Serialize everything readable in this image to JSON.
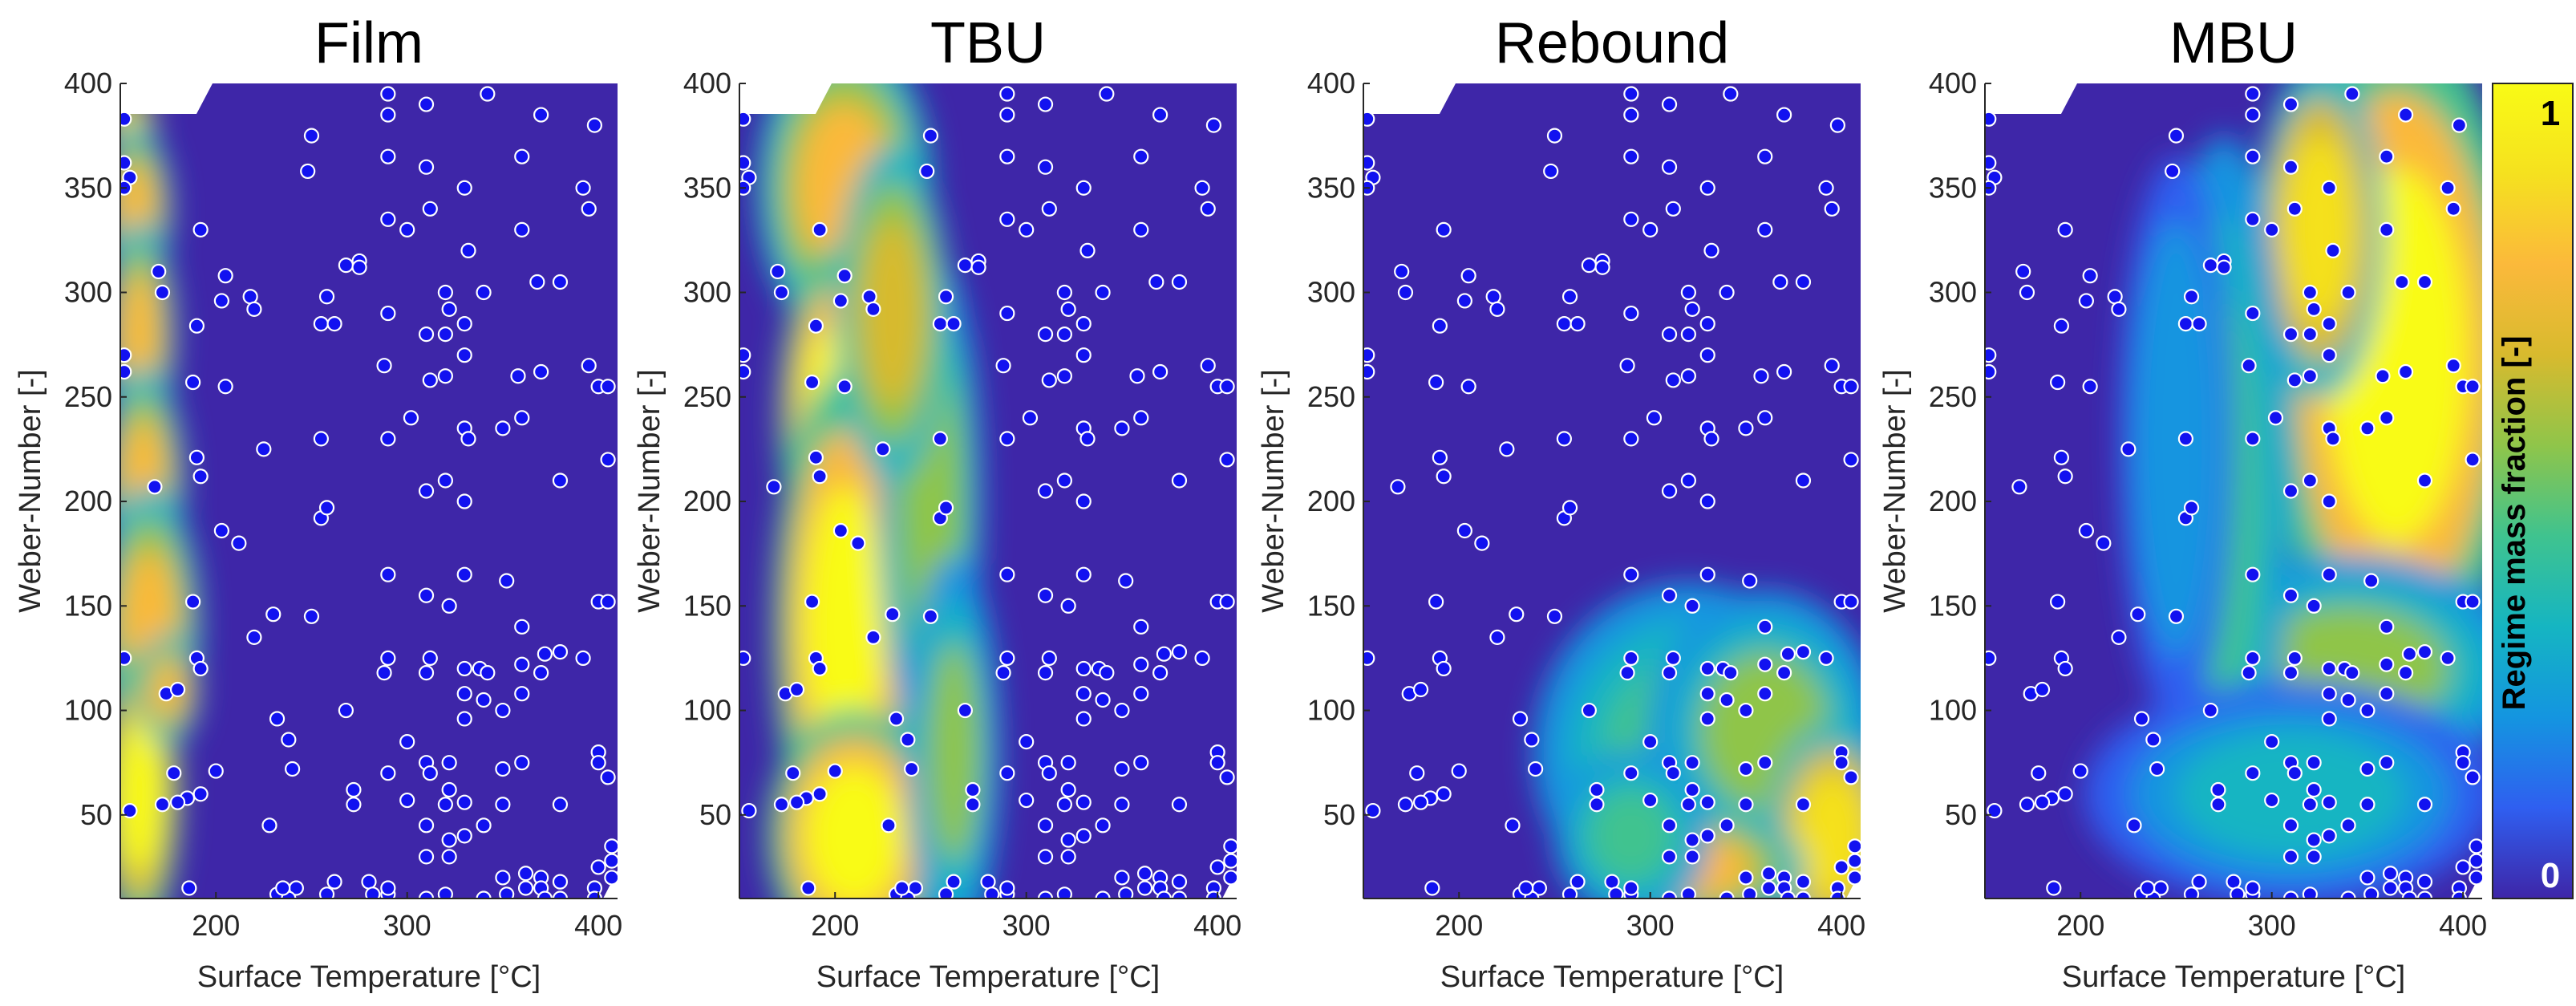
{
  "colorbar": {
    "label": "Regime mass fraction [-]",
    "min_label": "0",
    "max_label": "1",
    "colors": [
      "#3e26a8",
      "#2f5ff0",
      "#1495e0",
      "#15b5c2",
      "#3fc38f",
      "#8fc54a",
      "#d8ba2e",
      "#fbb93b",
      "#f5e11f",
      "#f9fb15"
    ]
  },
  "point_color": "#1212f0",
  "chart_data": [
    {
      "type": "heatmap",
      "title": "Film",
      "xlabel": "Surface Temperature [°C]",
      "ylabel": "Weber-Number [-]",
      "xlim": [
        150,
        410
      ],
      "ylim": [
        10,
        400
      ],
      "xticks": [
        200,
        300,
        400
      ],
      "yticks": [
        50,
        100,
        150,
        200,
        250,
        300,
        350,
        400
      ],
      "blobs": [
        {
          "x": 155,
          "y": 380,
          "rx": 10,
          "ry": 12,
          "v": 0.9
        },
        {
          "x": 158,
          "y": 340,
          "rx": 14,
          "ry": 30,
          "v": 0.75
        },
        {
          "x": 160,
          "y": 280,
          "rx": 14,
          "ry": 40,
          "v": 0.78
        },
        {
          "x": 162,
          "y": 210,
          "rx": 16,
          "ry": 40,
          "v": 0.78
        },
        {
          "x": 165,
          "y": 140,
          "rx": 20,
          "ry": 50,
          "v": 0.8
        },
        {
          "x": 160,
          "y": 60,
          "rx": 16,
          "ry": 50,
          "v": 0.95
        },
        {
          "x": 175,
          "y": 110,
          "rx": 12,
          "ry": 20,
          "v": 0.75
        }
      ]
    },
    {
      "type": "heatmap",
      "title": "TBU",
      "xlabel": "Surface Temperature [°C]",
      "ylabel": "Weber-Number [-]",
      "xlim": [
        150,
        410
      ],
      "ylim": [
        10,
        400
      ],
      "xticks": [
        200,
        300,
        400
      ],
      "yticks": [
        50,
        100,
        150,
        200,
        250,
        300,
        350,
        400
      ],
      "blobs": [
        {
          "x": 205,
          "y": 350,
          "rx": 34,
          "ry": 55,
          "v": 0.8
        },
        {
          "x": 200,
          "y": 240,
          "rx": 22,
          "ry": 60,
          "v": 1.0
        },
        {
          "x": 205,
          "y": 140,
          "rx": 28,
          "ry": 90,
          "v": 1.0
        },
        {
          "x": 210,
          "y": 40,
          "rx": 34,
          "ry": 45,
          "v": 1.0
        },
        {
          "x": 250,
          "y": 200,
          "rx": 20,
          "ry": 90,
          "v": 0.6
        },
        {
          "x": 262,
          "y": 80,
          "rx": 18,
          "ry": 70,
          "v": 0.5
        },
        {
          "x": 230,
          "y": 290,
          "rx": 22,
          "ry": 60,
          "v": 0.7
        }
      ]
    },
    {
      "type": "heatmap",
      "title": "Rebound",
      "xlabel": "Surface Temperature [°C]",
      "ylabel": "Weber-Number [-]",
      "xlim": [
        150,
        410
      ],
      "ylim": [
        10,
        400
      ],
      "xticks": [
        200,
        300,
        400
      ],
      "yticks": [
        50,
        100,
        150,
        200,
        250,
        300,
        350,
        400
      ],
      "blobs": [
        {
          "x": 320,
          "y": 80,
          "rx": 60,
          "ry": 60,
          "v": 0.45
        },
        {
          "x": 360,
          "y": 90,
          "rx": 45,
          "ry": 50,
          "v": 0.5
        },
        {
          "x": 395,
          "y": 40,
          "rx": 25,
          "ry": 40,
          "v": 0.85
        },
        {
          "x": 320,
          "y": 25,
          "rx": 45,
          "ry": 22,
          "v": 0.75
        },
        {
          "x": 290,
          "y": 40,
          "rx": 30,
          "ry": 30,
          "v": 0.45
        }
      ]
    },
    {
      "type": "heatmap",
      "title": "MBU",
      "xlabel": "Surface Temperature [°C]",
      "ylabel": "Weber-Number [-]",
      "xlim": [
        150,
        410
      ],
      "ylim": [
        10,
        400
      ],
      "xticks": [
        200,
        300,
        400
      ],
      "yticks": [
        50,
        100,
        150,
        200,
        250,
        300,
        350,
        400
      ],
      "blobs": [
        {
          "x": 365,
          "y": 270,
          "rx": 50,
          "ry": 120,
          "v": 1.0
        },
        {
          "x": 325,
          "y": 330,
          "rx": 25,
          "ry": 60,
          "v": 0.85
        },
        {
          "x": 340,
          "y": 120,
          "rx": 70,
          "ry": 40,
          "v": 0.5
        },
        {
          "x": 275,
          "y": 200,
          "rx": 25,
          "ry": 130,
          "v": 0.4
        },
        {
          "x": 250,
          "y": 230,
          "rx": 22,
          "ry": 100,
          "v": 0.25
        },
        {
          "x": 310,
          "y": 60,
          "rx": 80,
          "ry": 40,
          "v": 0.3
        }
      ]
    }
  ],
  "sample_points": [
    [
      152,
      383
    ],
    [
      152,
      362
    ],
    [
      155,
      355
    ],
    [
      152,
      350
    ],
    [
      152,
      270
    ],
    [
      152,
      262
    ],
    [
      152,
      125
    ],
    [
      155,
      52
    ],
    [
      170,
      310
    ],
    [
      172,
      300
    ],
    [
      168,
      207
    ],
    [
      174,
      108
    ],
    [
      180,
      110
    ],
    [
      178,
      70
    ],
    [
      172,
      55
    ],
    [
      192,
      330
    ],
    [
      190,
      284
    ],
    [
      188,
      257
    ],
    [
      190,
      221
    ],
    [
      192,
      212
    ],
    [
      188,
      152
    ],
    [
      190,
      125
    ],
    [
      192,
      120
    ],
    [
      192,
      60
    ],
    [
      185,
      58
    ],
    [
      180,
      56
    ],
    [
      186,
      15
    ],
    [
      205,
      308
    ],
    [
      203,
      296
    ],
    [
      205,
      255
    ],
    [
      203,
      186
    ],
    [
      212,
      180
    ],
    [
      200,
      71
    ],
    [
      218,
      298
    ],
    [
      220,
      292
    ],
    [
      225,
      225
    ],
    [
      230,
      146
    ],
    [
      220,
      135
    ],
    [
      232,
      96
    ],
    [
      238,
      86
    ],
    [
      240,
      72
    ],
    [
      228,
      45
    ],
    [
      242,
      15
    ],
    [
      232,
      12
    ],
    [
      238,
      10
    ],
    [
      235,
      15
    ],
    [
      250,
      375
    ],
    [
      248,
      358
    ],
    [
      258,
      298
    ],
    [
      255,
      285
    ],
    [
      262,
      285
    ],
    [
      255,
      230
    ],
    [
      255,
      192
    ],
    [
      258,
      197
    ],
    [
      250,
      145
    ],
    [
      258,
      12
    ],
    [
      262,
      18
    ],
    [
      268,
      313
    ],
    [
      268,
      100
    ],
    [
      272,
      62
    ],
    [
      275,
      315
    ],
    [
      275,
      312
    ],
    [
      272,
      55
    ],
    [
      280,
      18
    ],
    [
      282,
      12
    ],
    [
      290,
      395
    ],
    [
      290,
      385
    ],
    [
      290,
      365
    ],
    [
      290,
      335
    ],
    [
      290,
      290
    ],
    [
      288,
      265
    ],
    [
      290,
      230
    ],
    [
      290,
      165
    ],
    [
      290,
      125
    ],
    [
      288,
      118
    ],
    [
      290,
      70
    ],
    [
      290,
      12
    ],
    [
      290,
      15
    ],
    [
      300,
      330
    ],
    [
      302,
      240
    ],
    [
      300,
      85
    ],
    [
      300,
      57
    ],
    [
      310,
      390
    ],
    [
      310,
      360
    ],
    [
      312,
      340
    ],
    [
      310,
      280
    ],
    [
      312,
      258
    ],
    [
      310,
      205
    ],
    [
      310,
      155
    ],
    [
      312,
      125
    ],
    [
      310,
      118
    ],
    [
      310,
      75
    ],
    [
      312,
      70
    ],
    [
      310,
      45
    ],
    [
      310,
      30
    ],
    [
      310,
      10
    ],
    [
      320,
      300
    ],
    [
      322,
      292
    ],
    [
      320,
      280
    ],
    [
      320,
      260
    ],
    [
      320,
      210
    ],
    [
      322,
      150
    ],
    [
      322,
      75
    ],
    [
      322,
      62
    ],
    [
      320,
      55
    ],
    [
      322,
      38
    ],
    [
      322,
      30
    ],
    [
      320,
      12
    ],
    [
      330,
      350
    ],
    [
      332,
      320
    ],
    [
      330,
      285
    ],
    [
      330,
      270
    ],
    [
      330,
      235
    ],
    [
      332,
      230
    ],
    [
      330,
      200
    ],
    [
      330,
      165
    ],
    [
      330,
      120
    ],
    [
      330,
      108
    ],
    [
      330,
      96
    ],
    [
      330,
      56
    ],
    [
      330,
      40
    ],
    [
      342,
      395
    ],
    [
      340,
      300
    ],
    [
      338,
      120
    ],
    [
      342,
      118
    ],
    [
      340,
      105
    ],
    [
      340,
      45
    ],
    [
      340,
      10
    ],
    [
      350,
      235
    ],
    [
      352,
      162
    ],
    [
      350,
      100
    ],
    [
      350,
      72
    ],
    [
      350,
      55
    ],
    [
      350,
      20
    ],
    [
      352,
      12
    ],
    [
      360,
      365
    ],
    [
      360,
      330
    ],
    [
      358,
      260
    ],
    [
      360,
      240
    ],
    [
      360,
      140
    ],
    [
      360,
      122
    ],
    [
      360,
      108
    ],
    [
      360,
      75
    ],
    [
      362,
      22
    ],
    [
      362,
      15
    ],
    [
      370,
      385
    ],
    [
      368,
      305
    ],
    [
      370,
      262
    ],
    [
      372,
      127
    ],
    [
      370,
      118
    ],
    [
      370,
      20
    ],
    [
      370,
      15
    ],
    [
      372,
      10
    ],
    [
      380,
      305
    ],
    [
      380,
      210
    ],
    [
      380,
      128
    ],
    [
      380,
      55
    ],
    [
      380,
      18
    ],
    [
      380,
      10
    ],
    [
      392,
      350
    ],
    [
      392,
      125
    ],
    [
      395,
      340
    ],
    [
      395,
      265
    ],
    [
      398,
      380
    ],
    [
      400,
      255
    ],
    [
      400,
      152
    ],
    [
      400,
      80
    ],
    [
      400,
      75
    ],
    [
      398,
      15
    ],
    [
      398,
      10
    ],
    [
      400,
      25
    ],
    [
      405,
      255
    ],
    [
      405,
      220
    ],
    [
      405,
      152
    ],
    [
      405,
      68
    ],
    [
      407,
      35
    ],
    [
      407,
      28
    ],
    [
      407,
      20
    ]
  ]
}
